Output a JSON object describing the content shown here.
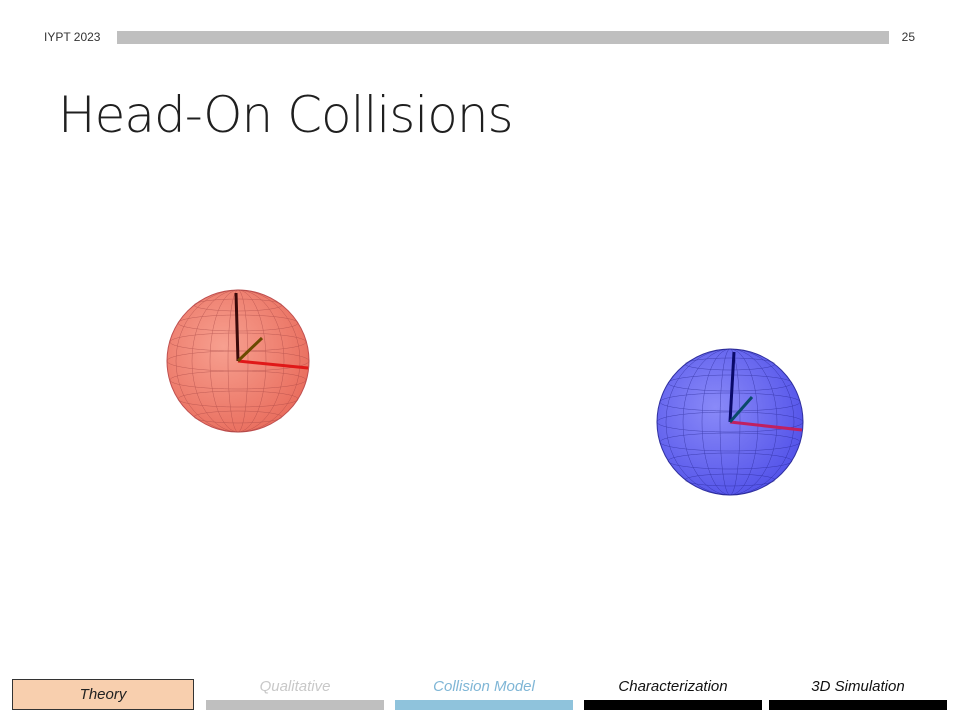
{
  "header": {
    "event": "IYPT 2023",
    "page_number": "25"
  },
  "slide": {
    "title": "Head-On Collisions"
  },
  "figure": {
    "spheres": [
      {
        "name": "red-sphere",
        "color": "#f08070",
        "edge": "#b04040"
      },
      {
        "name": "blue-sphere",
        "color": "#6a6af0",
        "edge": "#2a2a90"
      }
    ]
  },
  "nav": {
    "active_label": "Theory",
    "items": [
      {
        "label": "Qualitative",
        "text_color": "#c8c8c8",
        "bar_color": "#bfbfbf"
      },
      {
        "label": "Collision Model",
        "text_color": "#7fb6d6",
        "bar_color": "#8fc3dc"
      },
      {
        "label": "Characterization",
        "text_color": "#111111",
        "bar_color": "#000000"
      },
      {
        "label": "3D Simulation",
        "text_color": "#111111",
        "bar_color": "#000000"
      }
    ]
  }
}
